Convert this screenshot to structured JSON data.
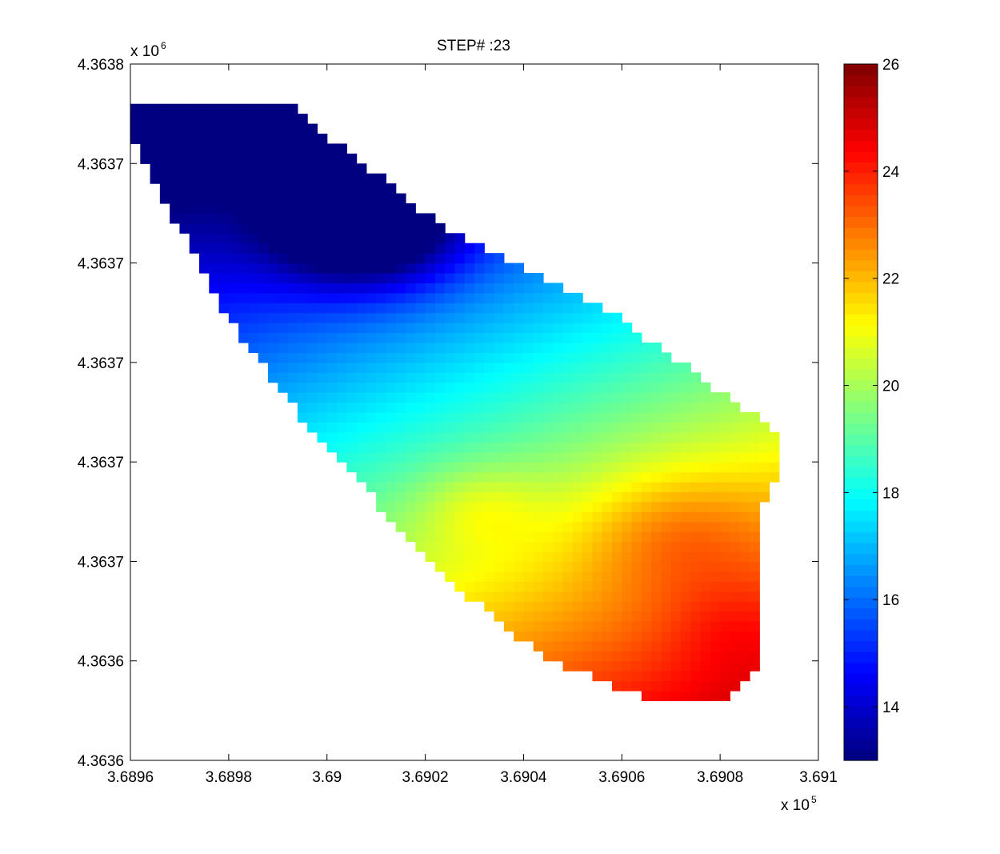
{
  "chart_data": {
    "type": "heatmap",
    "title": "STEP# :23",
    "xlabel": "",
    "ylabel": "",
    "x_exponent_label": "x 10",
    "x_exponent": "5",
    "y_exponent_label": "x 10",
    "y_exponent": "6",
    "xlim": [
      368960,
      369100
    ],
    "ylim": [
      4363590,
      4363730
    ],
    "x_ticks": [
      {
        "value": 368960,
        "label": "3.6896"
      },
      {
        "value": 368980,
        "label": "3.6898"
      },
      {
        "value": 369000,
        "label": "3.69"
      },
      {
        "value": 369020,
        "label": "3.6902"
      },
      {
        "value": 369040,
        "label": "3.6904"
      },
      {
        "value": 369060,
        "label": "3.6906"
      },
      {
        "value": 369080,
        "label": "3.6908"
      },
      {
        "value": 369100,
        "label": "3.691"
      }
    ],
    "y_ticks": [
      {
        "value": 4363590,
        "label": "4.3636"
      },
      {
        "value": 4363610,
        "label": "4.3636"
      },
      {
        "value": 4363630,
        "label": "4.3637"
      },
      {
        "value": 4363650,
        "label": "4.3637"
      },
      {
        "value": 4363670,
        "label": "4.3637"
      },
      {
        "value": 4363690,
        "label": "4.3637"
      },
      {
        "value": 4363710,
        "label": "4.3637"
      },
      {
        "value": 4363730,
        "label": "4.3638"
      }
    ],
    "grid": false,
    "colormap": "jet",
    "colorbar": {
      "range": [
        13,
        26
      ],
      "ticks": [
        14,
        16,
        18,
        20,
        22,
        24,
        26
      ],
      "labels": [
        "14",
        "16",
        "18",
        "20",
        "22",
        "24",
        "26"
      ]
    },
    "field": {
      "cell_size": 2,
      "domain_outline": [
        [
          368961,
          4363722
        ],
        [
          368992,
          4363722
        ],
        [
          369025,
          4363696
        ],
        [
          369058,
          4363680
        ],
        [
          369080,
          4363664
        ],
        [
          369092,
          4363656
        ],
        [
          369093,
          4363649
        ],
        [
          369089,
          4363642
        ],
        [
          369088,
          4363610
        ],
        [
          369080,
          4363601
        ],
        [
          369064,
          4363603
        ],
        [
          369044,
          4363611
        ],
        [
          369025,
          4363626
        ],
        [
          369014,
          4363638
        ],
        [
          369010,
          4363642
        ],
        [
          368994,
          4363660
        ],
        [
          368979,
          4363680
        ],
        [
          368961,
          4363714
        ]
      ],
      "anomalies": [
        {
          "x": 369008,
          "y": 4363697,
          "amplitude": -4.3,
          "sigma_x": 13,
          "sigma_y": 8
        },
        {
          "x": 369071,
          "y": 4363636,
          "amplitude": 1.3,
          "sigma_x": 13,
          "sigma_y": 9
        },
        {
          "x": 369031,
          "y": 4363641,
          "amplitude": 1.0,
          "sigma_x": 9,
          "sigma_y": 6
        },
        {
          "x": 369081,
          "y": 4363617,
          "amplitude": 0.6,
          "sigma_x": 9,
          "sigma_y": 7
        }
      ],
      "base_value": 17.4,
      "gradient": {
        "per_x": 0.032,
        "per_y": -0.082,
        "x0": 369000,
        "y0": 4363660
      }
    }
  }
}
